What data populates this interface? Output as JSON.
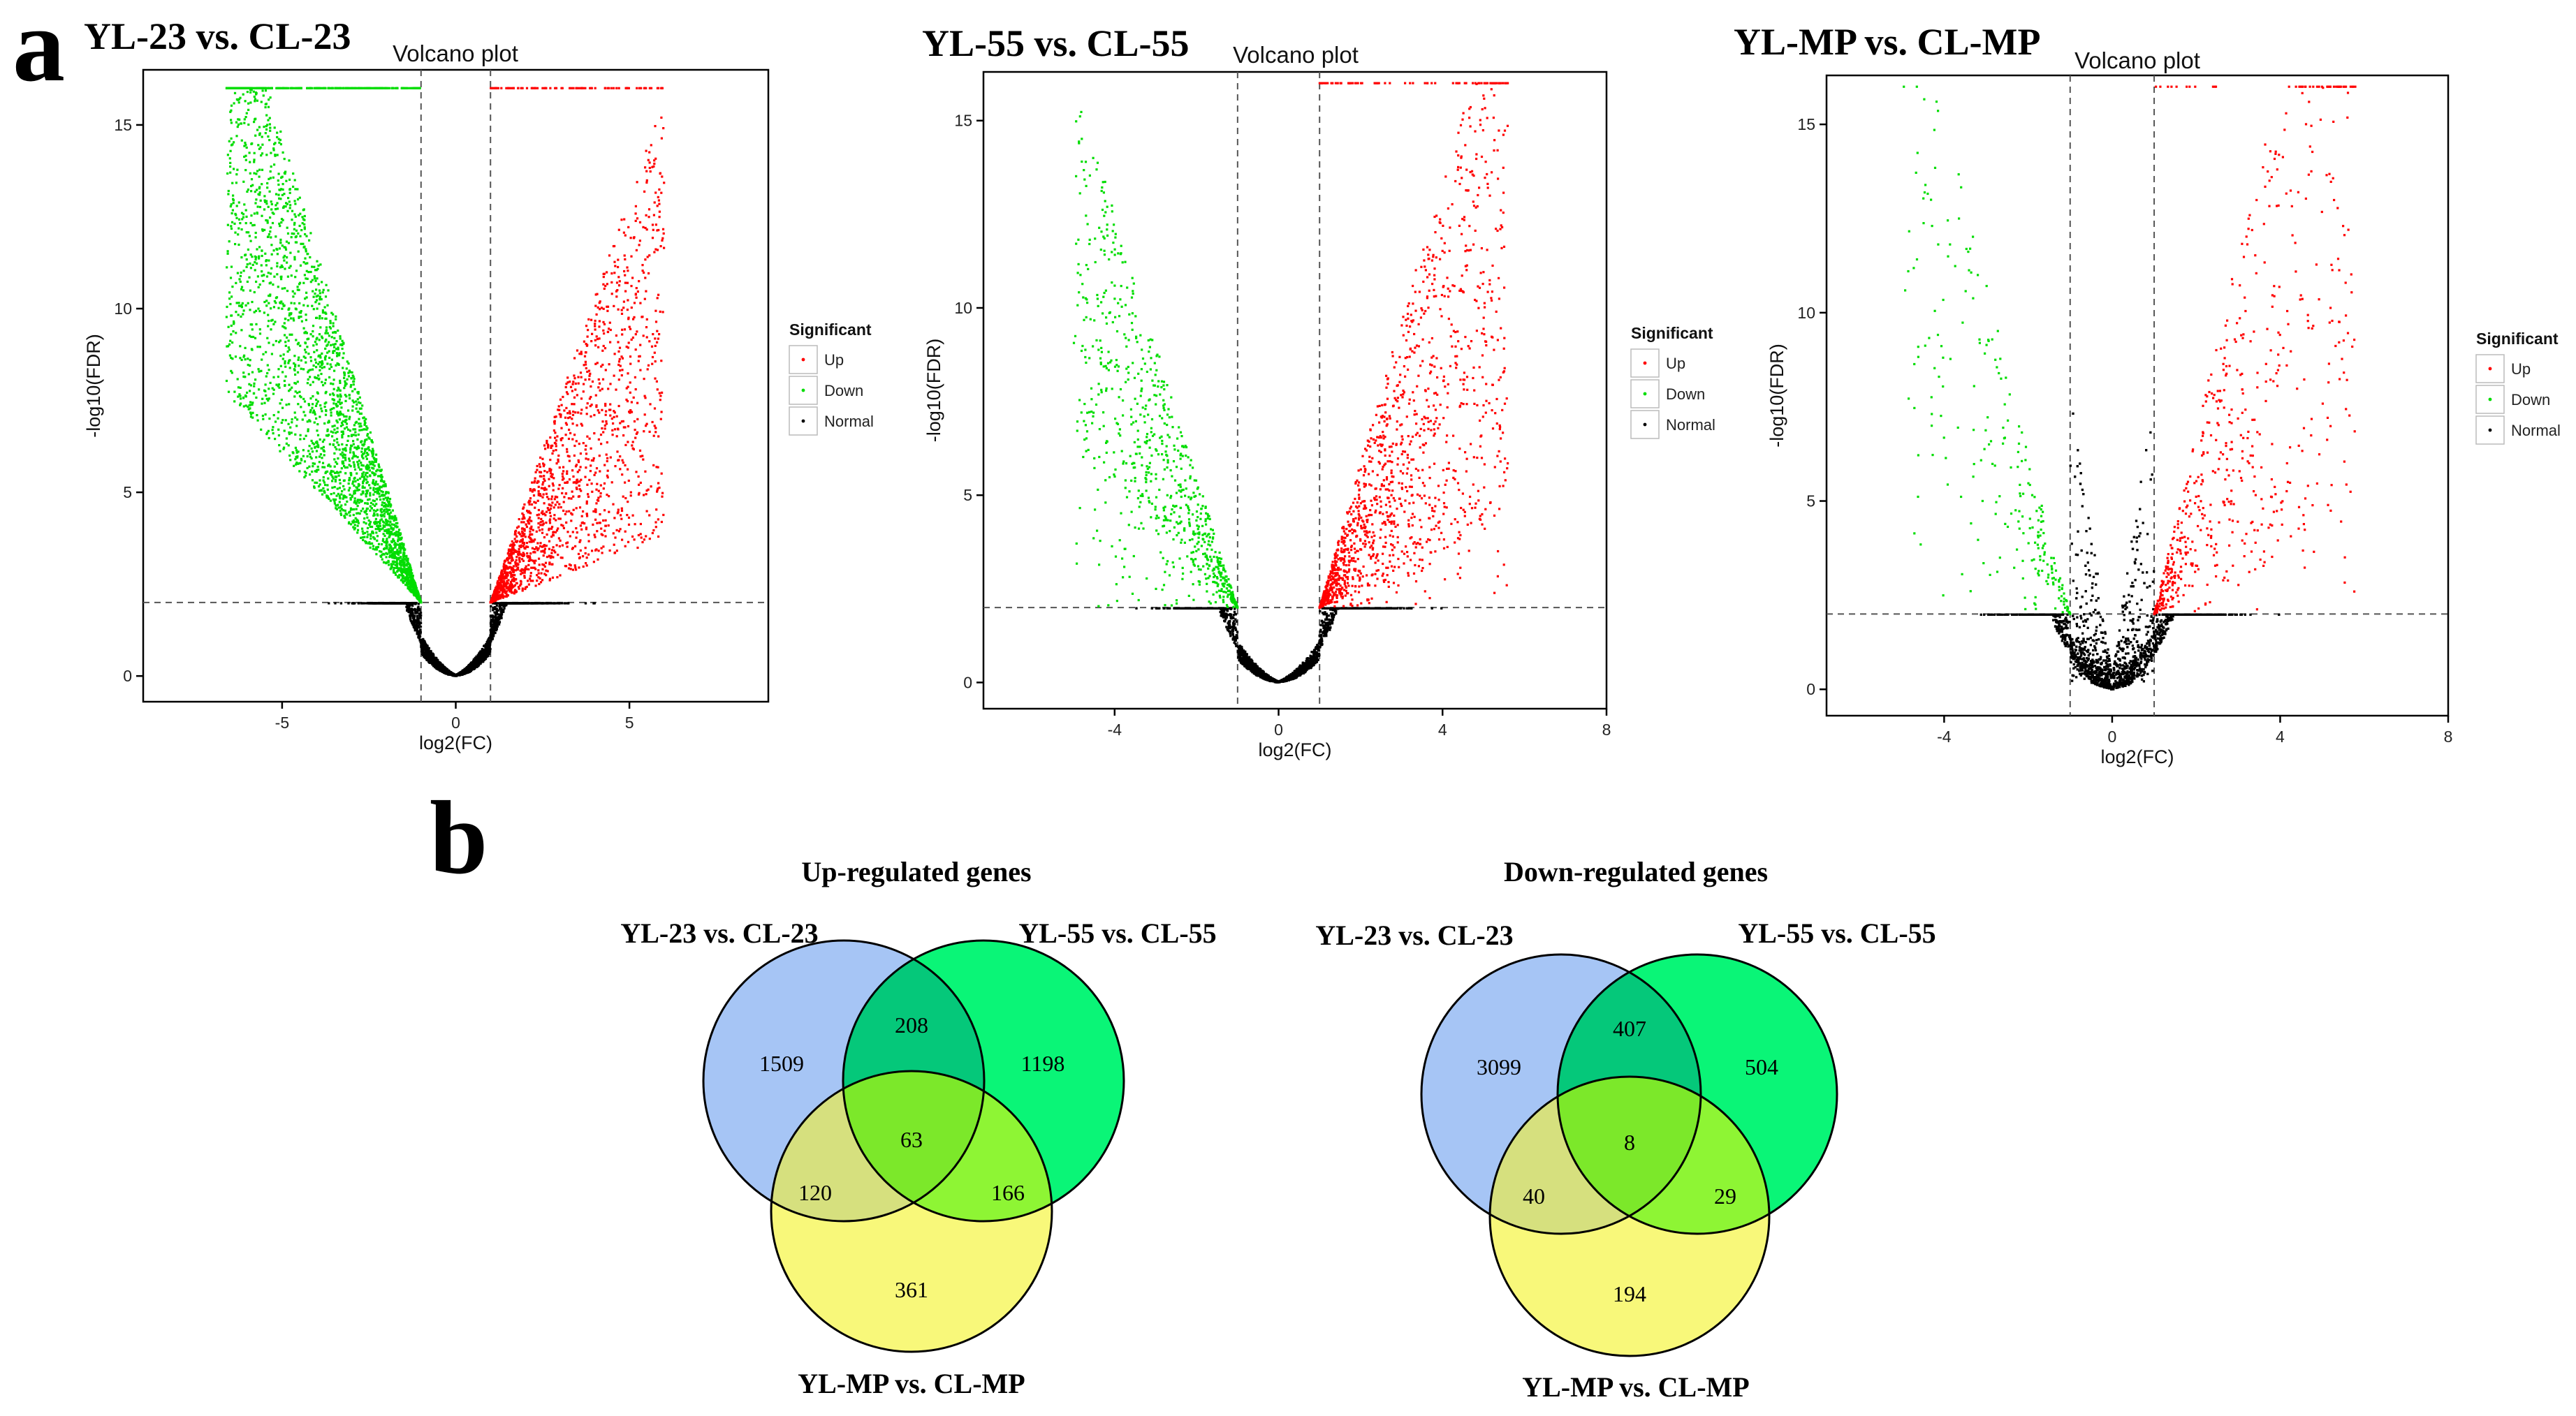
{
  "panel_labels": {
    "a": "a",
    "b": "b"
  },
  "chart_data": [
    {
      "type": "scatter",
      "kind": "volcano",
      "comparison": "YL-23 vs. CL-23",
      "title": "Volcano plot",
      "xlabel": "log2(FC)",
      "ylabel": "-log10(FDR)",
      "xlim": [
        -9,
        9
      ],
      "ylim": [
        -0.7,
        16.5
      ],
      "xticks": [
        -5,
        0,
        5
      ],
      "yticks": [
        0,
        5,
        10,
        15
      ],
      "fc_cutoff": 1,
      "fdr_cutoff_log": 2,
      "y_cap": 16,
      "legend": {
        "title": "Significant",
        "entries": [
          "Up",
          "Down",
          "Normal"
        ]
      },
      "series_colors": {
        "Up": "#ff0000",
        "Down": "#00dd00",
        "Normal": "#000000"
      },
      "distribution": {
        "up_max_x": 6.0,
        "down_min_x": -6.6,
        "up_n": 1700,
        "down_n": 2900,
        "normal_n": 3800,
        "shape": "dense"
      }
    },
    {
      "type": "scatter",
      "kind": "volcano",
      "comparison": "YL-55 vs. CL-55",
      "title": "Volcano plot",
      "xlabel": "log2(FC)",
      "ylabel": "-log10(FDR)",
      "xlim": [
        -7.2,
        8
      ],
      "ylim": [
        -0.7,
        16.3
      ],
      "xticks": [
        -4,
        0,
        4,
        8
      ],
      "yticks": [
        0,
        5,
        10,
        15
      ],
      "fc_cutoff": 1,
      "fdr_cutoff_log": 2,
      "y_cap": 16,
      "legend": {
        "title": "Significant",
        "entries": [
          "Up",
          "Down",
          "Normal"
        ]
      },
      "series_colors": {
        "Up": "#ff0000",
        "Down": "#00dd00",
        "Normal": "#000000"
      },
      "distribution": {
        "up_max_x": 5.6,
        "down_min_x": -5.0,
        "up_n": 1450,
        "down_n": 800,
        "normal_n": 3600,
        "shape": "medium"
      }
    },
    {
      "type": "scatter",
      "kind": "volcano",
      "comparison": "YL-MP vs. CL-MP",
      "title": "Volcano plot",
      "xlabel": "log2(FC)",
      "ylabel": "-log10(FDR)",
      "xlim": [
        -6.8,
        8
      ],
      "ylim": [
        -0.7,
        16.3
      ],
      "xticks": [
        -4,
        0,
        4,
        8
      ],
      "yticks": [
        0,
        5,
        10,
        15
      ],
      "fc_cutoff": 1,
      "fdr_cutoff_log": 2,
      "y_cap": 16,
      "legend": {
        "title": "Significant",
        "entries": [
          "Up",
          "Down",
          "Normal"
        ]
      },
      "series_colors": {
        "Up": "#ff0000",
        "Down": "#00dd00",
        "Normal": "#000000"
      },
      "distribution": {
        "up_max_x": 5.8,
        "down_min_x": -5.0,
        "up_n": 620,
        "down_n": 240,
        "normal_n": 3400,
        "shape": "sparse"
      }
    }
  ],
  "venn": [
    {
      "title": "Up-regulated genes",
      "sets": [
        "YL-23 vs. CL-23",
        "YL-55 vs. CL-55",
        "YL-MP vs. CL-MP"
      ],
      "colors": [
        "#a6c5f5",
        "#0af577",
        "#f8f87a"
      ],
      "region_colors": {
        "AB": "#05c87a",
        "AC": "#d6e07e",
        "BC": "#8ef534",
        "ABC": "#7ce82a"
      },
      "counts": {
        "A": "1509",
        "B": "1198",
        "C": "361",
        "AB": "208",
        "AC": "120",
        "BC": "166",
        "ABC": "63"
      }
    },
    {
      "title": "Down-regulated genes",
      "sets": [
        "YL-23 vs. CL-23",
        "YL-55 vs. CL-55",
        "YL-MP vs. CL-MP"
      ],
      "colors": [
        "#a6c5f5",
        "#0af577",
        "#f8f87a"
      ],
      "region_colors": {
        "AB": "#05c87a",
        "AC": "#d6e07e",
        "BC": "#8ef534",
        "ABC": "#7ce82a"
      },
      "counts": {
        "A": "3099",
        "B": "504",
        "C": "194",
        "AB": "407",
        "AC": "40",
        "BC": "29",
        "ABC": "8"
      }
    }
  ]
}
